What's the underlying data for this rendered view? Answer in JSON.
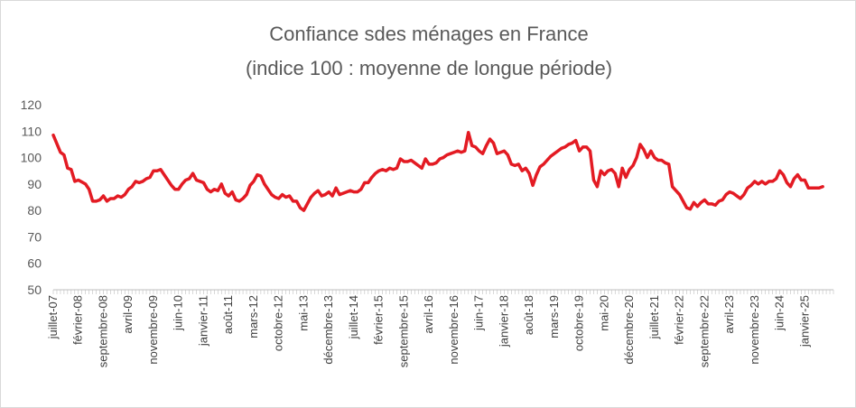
{
  "chart_data": {
    "type": "line",
    "title_lines": [
      "Confiance sdes ménages en France",
      "(indice 100 : moyenne de longue période)"
    ],
    "xlabel": "",
    "ylabel": "",
    "ylim": [
      50,
      120
    ],
    "yticks": [
      50,
      60,
      70,
      80,
      90,
      100,
      110,
      120
    ],
    "grid": false,
    "legend": "none",
    "series_color": "#e31b23",
    "x_start": "2007-07",
    "x_end": "2025-09",
    "xtick_labels": [
      {
        "date": "2007-07",
        "label": "juillet-07"
      },
      {
        "date": "2008-02",
        "label": "février-08"
      },
      {
        "date": "2008-09",
        "label": "septembre-08"
      },
      {
        "date": "2009-04",
        "label": "avril-09"
      },
      {
        "date": "2009-11",
        "label": "novembre-09"
      },
      {
        "date": "2010-06",
        "label": "juin-10"
      },
      {
        "date": "2011-01",
        "label": "janvier-11"
      },
      {
        "date": "2011-08",
        "label": "août-11"
      },
      {
        "date": "2012-03",
        "label": "mars-12"
      },
      {
        "date": "2012-10",
        "label": "octobre-12"
      },
      {
        "date": "2013-05",
        "label": "mai-13"
      },
      {
        "date": "2013-12",
        "label": "décembre-13"
      },
      {
        "date": "2014-07",
        "label": "juillet-14"
      },
      {
        "date": "2015-02",
        "label": "février-15"
      },
      {
        "date": "2015-09",
        "label": "septembre-15"
      },
      {
        "date": "2016-04",
        "label": "avril-16"
      },
      {
        "date": "2016-11",
        "label": "novembre-16"
      },
      {
        "date": "2017-06",
        "label": "juin-17"
      },
      {
        "date": "2018-01",
        "label": "janvier-18"
      },
      {
        "date": "2018-08",
        "label": "août-18"
      },
      {
        "date": "2019-03",
        "label": "mars-19"
      },
      {
        "date": "2019-10",
        "label": "octobre-19"
      },
      {
        "date": "2020-05",
        "label": "mai-20"
      },
      {
        "date": "2020-12",
        "label": "décembre-20"
      },
      {
        "date": "2021-07",
        "label": "juillet-21"
      },
      {
        "date": "2022-02",
        "label": "février-22"
      },
      {
        "date": "2022-09",
        "label": "septembre-22"
      },
      {
        "date": "2023-04",
        "label": "avril-23"
      },
      {
        "date": "2023-11",
        "label": "novembre-23"
      },
      {
        "date": "2024-06",
        "label": "juin-24"
      },
      {
        "date": "2025-01",
        "label": "janvier-25"
      }
    ],
    "series": [
      {
        "points": [
          [
            "2007-07",
            108.5
          ],
          [
            "2007-09",
            102
          ],
          [
            "2007-10",
            101
          ],
          [
            "2007-11",
            96
          ],
          [
            "2007-12",
            95.5
          ],
          [
            "2008-01",
            91
          ],
          [
            "2008-02",
            91.5
          ],
          [
            "2008-04",
            90
          ],
          [
            "2008-05",
            88
          ],
          [
            "2008-06",
            83.5
          ],
          [
            "2008-07",
            83.5
          ],
          [
            "2008-08",
            84
          ],
          [
            "2008-09",
            85.5
          ],
          [
            "2008-10",
            83.5
          ],
          [
            "2008-11",
            84.5
          ],
          [
            "2008-12",
            84.5
          ],
          [
            "2009-01",
            85.5
          ],
          [
            "2009-02",
            85
          ],
          [
            "2009-03",
            86
          ],
          [
            "2009-04",
            88
          ],
          [
            "2009-05",
            89
          ],
          [
            "2009-06",
            91
          ],
          [
            "2009-07",
            90.5
          ],
          [
            "2009-08",
            91
          ],
          [
            "2009-09",
            92
          ],
          [
            "2009-10",
            92.5
          ],
          [
            "2009-11",
            95
          ],
          [
            "2009-12",
            95
          ],
          [
            "2010-01",
            95.5
          ],
          [
            "2010-02",
            93.5
          ],
          [
            "2010-03",
            91.5
          ],
          [
            "2010-04",
            89.5
          ],
          [
            "2010-05",
            88
          ],
          [
            "2010-06",
            88
          ],
          [
            "2010-07",
            90
          ],
          [
            "2010-08",
            91.5
          ],
          [
            "2010-09",
            92
          ],
          [
            "2010-10",
            94
          ],
          [
            "2010-11",
            91.5
          ],
          [
            "2010-12",
            91
          ],
          [
            "2011-01",
            90.5
          ],
          [
            "2011-02",
            88
          ],
          [
            "2011-03",
            87
          ],
          [
            "2011-04",
            88
          ],
          [
            "2011-05",
            87.5
          ],
          [
            "2011-06",
            90
          ],
          [
            "2011-07",
            86.5
          ],
          [
            "2011-08",
            85.5
          ],
          [
            "2011-09",
            87
          ],
          [
            "2011-10",
            84
          ],
          [
            "2011-11",
            83.5
          ],
          [
            "2011-12",
            84.5
          ],
          [
            "2012-01",
            86
          ],
          [
            "2012-02",
            89.5
          ],
          [
            "2012-03",
            91
          ],
          [
            "2012-04",
            93.5
          ],
          [
            "2012-05",
            93
          ],
          [
            "2012-06",
            90
          ],
          [
            "2012-07",
            88
          ],
          [
            "2012-08",
            86
          ],
          [
            "2012-09",
            85
          ],
          [
            "2012-10",
            84.5
          ],
          [
            "2012-11",
            86
          ],
          [
            "2012-12",
            85
          ],
          [
            "2013-01",
            85.5
          ],
          [
            "2013-02",
            83.5
          ],
          [
            "2013-03",
            83.5
          ],
          [
            "2013-04",
            81
          ],
          [
            "2013-05",
            80
          ],
          [
            "2013-06",
            82.5
          ],
          [
            "2013-07",
            85
          ],
          [
            "2013-08",
            86.5
          ],
          [
            "2013-09",
            87.5
          ],
          [
            "2013-10",
            85.5
          ],
          [
            "2013-11",
            86
          ],
          [
            "2013-12",
            87
          ],
          [
            "2014-01",
            85.5
          ],
          [
            "2014-02",
            88.5
          ],
          [
            "2014-03",
            86
          ],
          [
            "2014-04",
            86.5
          ],
          [
            "2014-05",
            87
          ],
          [
            "2014-06",
            87.5
          ],
          [
            "2014-07",
            87
          ],
          [
            "2014-08",
            87
          ],
          [
            "2014-09",
            88
          ],
          [
            "2014-10",
            90.5
          ],
          [
            "2014-11",
            90.5
          ],
          [
            "2014-12",
            92.5
          ],
          [
            "2015-01",
            94
          ],
          [
            "2015-02",
            95
          ],
          [
            "2015-03",
            95.5
          ],
          [
            "2015-04",
            95
          ],
          [
            "2015-05",
            96
          ],
          [
            "2015-06",
            95.5
          ],
          [
            "2015-07",
            96
          ],
          [
            "2015-08",
            99.5
          ],
          [
            "2015-09",
            98.5
          ],
          [
            "2015-10",
            98.5
          ],
          [
            "2015-11",
            99
          ],
          [
            "2015-12",
            98
          ],
          [
            "2016-01",
            97
          ],
          [
            "2016-02",
            96
          ],
          [
            "2016-03",
            99.5
          ],
          [
            "2016-04",
            97.5
          ],
          [
            "2016-05",
            97.5
          ],
          [
            "2016-06",
            98
          ],
          [
            "2016-07",
            99.5
          ],
          [
            "2016-08",
            100
          ],
          [
            "2016-09",
            101
          ],
          [
            "2016-10",
            101.5
          ],
          [
            "2016-11",
            102
          ],
          [
            "2016-12",
            102.5
          ],
          [
            "2017-01",
            102
          ],
          [
            "2017-02",
            102.5
          ],
          [
            "2017-03",
            109.5
          ],
          [
            "2017-04",
            104.5
          ],
          [
            "2017-05",
            104
          ],
          [
            "2017-06",
            102.5
          ],
          [
            "2017-07",
            101.5
          ],
          [
            "2017-08",
            104.5
          ],
          [
            "2017-09",
            107
          ],
          [
            "2017-10",
            105.5
          ],
          [
            "2017-11",
            101.5
          ],
          [
            "2017-12",
            102
          ],
          [
            "2018-01",
            102.5
          ],
          [
            "2018-02",
            101
          ],
          [
            "2018-03",
            97.5
          ],
          [
            "2018-04",
            97
          ],
          [
            "2018-05",
            97.5
          ],
          [
            "2018-06",
            95
          ],
          [
            "2018-07",
            96
          ],
          [
            "2018-08",
            94
          ],
          [
            "2018-09",
            89.5
          ],
          [
            "2018-10",
            93.5
          ],
          [
            "2018-11",
            96.5
          ],
          [
            "2018-12",
            97.5
          ],
          [
            "2019-01",
            99
          ],
          [
            "2019-02",
            100.5
          ],
          [
            "2019-03",
            101.5
          ],
          [
            "2019-04",
            102.5
          ],
          [
            "2019-05",
            103.5
          ],
          [
            "2019-06",
            104
          ],
          [
            "2019-07",
            105
          ],
          [
            "2019-08",
            105.5
          ],
          [
            "2019-09",
            106.5
          ],
          [
            "2019-10",
            102.5
          ],
          [
            "2019-11",
            104
          ],
          [
            "2019-12",
            104
          ],
          [
            "2020-01",
            102.5
          ],
          [
            "2020-02",
            91.5
          ],
          [
            "2020-03",
            89
          ],
          [
            "2020-04",
            95
          ],
          [
            "2020-05",
            93.5
          ],
          [
            "2020-06",
            95
          ],
          [
            "2020-07",
            95.5
          ],
          [
            "2020-08",
            94
          ],
          [
            "2020-09",
            89
          ],
          [
            "2020-10",
            96
          ],
          [
            "2020-11",
            92.5
          ],
          [
            "2020-12",
            95.5
          ],
          [
            "2021-01",
            97
          ],
          [
            "2021-02",
            100
          ],
          [
            "2021-03",
            105
          ],
          [
            "2021-04",
            103
          ],
          [
            "2021-05",
            100
          ],
          [
            "2021-06",
            102.5
          ],
          [
            "2021-07",
            100
          ],
          [
            "2021-08",
            99
          ],
          [
            "2021-09",
            99
          ],
          [
            "2021-10",
            98
          ],
          [
            "2021-11",
            97.5
          ],
          [
            "2021-12",
            89
          ],
          [
            "2022-01",
            87.5
          ],
          [
            "2022-02",
            86
          ],
          [
            "2022-03",
            83.5
          ],
          [
            "2022-04",
            81
          ],
          [
            "2022-05",
            80.5
          ],
          [
            "2022-06",
            83
          ],
          [
            "2022-07",
            81.5
          ],
          [
            "2022-08",
            83
          ],
          [
            "2022-09",
            84
          ],
          [
            "2022-10",
            82.5
          ],
          [
            "2022-11",
            82.5
          ],
          [
            "2022-12",
            82
          ],
          [
            "2023-01",
            83.5
          ],
          [
            "2023-02",
            84
          ],
          [
            "2023-03",
            86
          ],
          [
            "2023-04",
            87
          ],
          [
            "2023-05",
            86.5
          ],
          [
            "2023-06",
            85.5
          ],
          [
            "2023-07",
            84.5
          ],
          [
            "2023-08",
            86
          ],
          [
            "2023-09",
            88.5
          ],
          [
            "2023-10",
            89.5
          ],
          [
            "2023-11",
            91
          ],
          [
            "2023-12",
            90
          ],
          [
            "2024-01",
            91
          ],
          [
            "2024-02",
            90
          ],
          [
            "2024-03",
            91
          ],
          [
            "2024-04",
            91
          ],
          [
            "2024-05",
            92
          ],
          [
            "2024-06",
            95
          ],
          [
            "2024-07",
            93.5
          ],
          [
            "2024-08",
            90.5
          ],
          [
            "2024-09",
            89
          ],
          [
            "2024-10",
            92
          ],
          [
            "2024-11",
            93.5
          ],
          [
            "2024-12",
            91.5
          ],
          [
            "2025-01",
            91.5
          ],
          [
            "2025-02",
            88.5
          ],
          [
            "2025-03",
            88.5
          ],
          [
            "2025-04",
            88.5
          ],
          [
            "2025-05",
            88.5
          ],
          [
            "2025-06",
            89
          ]
        ]
      }
    ]
  }
}
